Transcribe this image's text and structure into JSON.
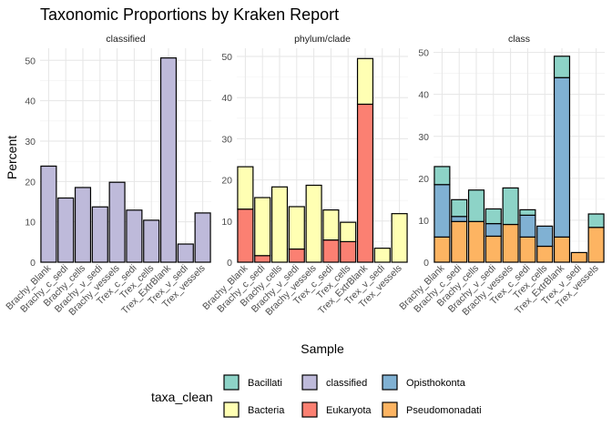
{
  "chart_data": {
    "type": "bar",
    "stacked": true,
    "title": "Taxonomic Proportions by Kraken Report",
    "xlabel": "Sample",
    "ylabel": "Percent",
    "grid": true,
    "categories": [
      "Brachy_Blank",
      "Brachy_c_sedi",
      "Brachy_cells",
      "Brachy_v_sedi",
      "Brachy_vessels",
      "Trex_c_sedi",
      "Trex_cells",
      "Trex_ExtrBlank",
      "Trex_v_sedi",
      "Trex_vessels"
    ],
    "facets": [
      {
        "title": "classified",
        "ylim": [
          0,
          53
        ],
        "yticks": [
          0,
          10,
          20,
          30,
          40,
          50
        ],
        "series": [
          {
            "name": "classified",
            "values": [
              23.8,
              15.9,
              18.5,
              13.7,
              19.8,
              12.9,
              10.4,
              50.6,
              4.5,
              12.2
            ]
          }
        ]
      },
      {
        "title": "phylum/clade",
        "ylim": [
          0,
          52
        ],
        "yticks": [
          0,
          10,
          20,
          30,
          40,
          50
        ],
        "series": [
          {
            "name": "Eukaryota",
            "values": [
              12.9,
              1.6,
              0.0,
              3.2,
              0.0,
              5.4,
              5.0,
              38.4,
              0.0,
              0.0
            ]
          },
          {
            "name": "Bacteria",
            "values": [
              10.3,
              14.1,
              18.3,
              10.3,
              18.7,
              7.3,
              4.7,
              11.1,
              3.4,
              11.8
            ]
          }
        ]
      },
      {
        "title": "class",
        "ylim": [
          0,
          51
        ],
        "yticks": [
          0,
          10,
          20,
          30,
          40,
          50
        ],
        "series": [
          {
            "name": "Pseudomonadati",
            "values": [
              6.0,
              9.7,
              9.7,
              6.2,
              9.0,
              6.0,
              3.8,
              6.0,
              2.3,
              8.3
            ]
          },
          {
            "name": "Opisthokonta",
            "values": [
              12.5,
              1.2,
              0.0,
              3.0,
              0.0,
              5.2,
              4.8,
              38.0,
              0.0,
              0.0
            ]
          },
          {
            "name": "Bacillati",
            "values": [
              4.3,
              4.0,
              7.5,
              3.5,
              8.7,
              1.3,
              0.0,
              5.1,
              0.0,
              3.2
            ]
          }
        ]
      }
    ],
    "legend": {
      "title": "taxa_clean",
      "position": "bottom",
      "entries": [
        "Bacillati",
        "Bacteria",
        "classified",
        "Eukaryota",
        "Opisthokonta",
        "Pseudomonadati"
      ]
    },
    "colors": {
      "Bacillati": "#8dd3c7",
      "Bacteria": "#ffffb3",
      "classified": "#bebada",
      "Eukaryota": "#fb8072",
      "Opisthokonta": "#80b1d3",
      "Pseudomonadati": "#fdb462"
    }
  }
}
